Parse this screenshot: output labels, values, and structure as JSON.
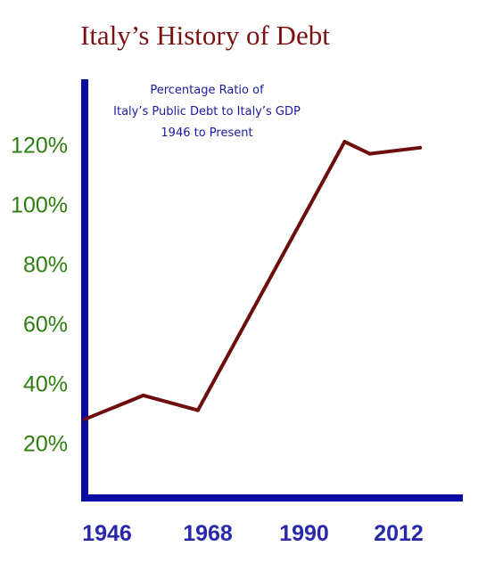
{
  "chart_data": {
    "type": "line",
    "title": "Italy’s History of Debt",
    "annotation": [
      "Percentage Ratio of",
      "Italy’s Public Debt to Italy’s GDP",
      "1946 to Present"
    ],
    "xlabel": "",
    "ylabel": "",
    "x_ticks": [
      "1946",
      "1968",
      "1990",
      "2012"
    ],
    "y_ticks": [
      "20%",
      "40%",
      "60%",
      "80%",
      "100%",
      "120%"
    ],
    "x": [
      1946,
      1960,
      1973,
      2008,
      2014,
      2026
    ],
    "values": [
      28,
      36,
      31,
      121,
      117,
      119
    ],
    "xlim": [
      1944,
      2032
    ],
    "ylim": [
      0,
      130
    ],
    "grid": false,
    "legend": "none",
    "colors": {
      "title": "#7a1212",
      "line": "#6e0d0d",
      "axes": "#0a0aa0",
      "y_ticks": "#2e7d10",
      "x_ticks": "#2828a8",
      "annotation": "#1a1aa0"
    }
  }
}
